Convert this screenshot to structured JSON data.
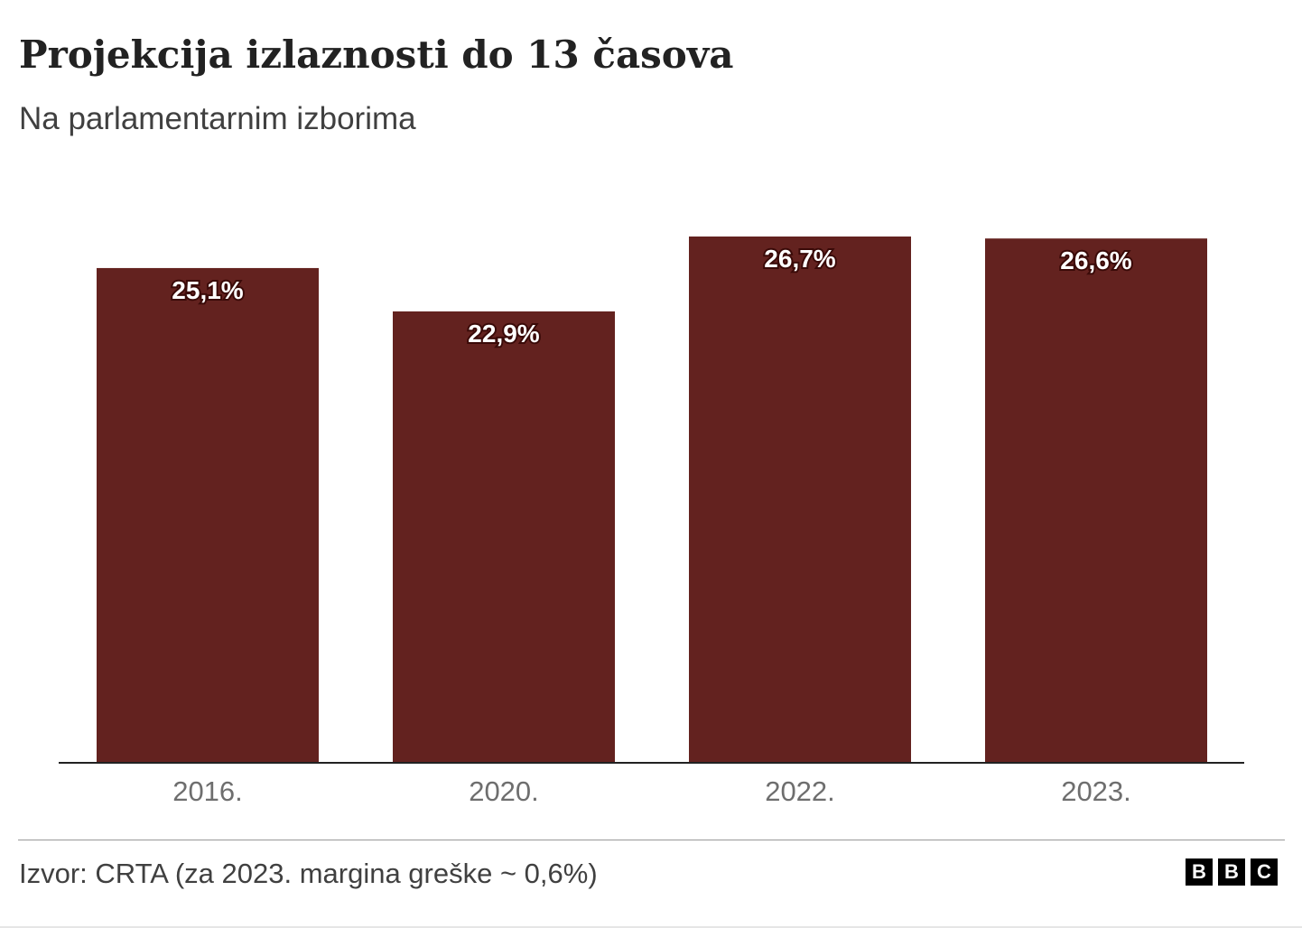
{
  "header": {
    "title": "Projekcija izlaznosti do 13 časova",
    "subtitle": "Na parlamentarnim izborima"
  },
  "footer": {
    "source": "Izvor: CRTA (za 2023. margina greške ~ 0,6%)",
    "logo": [
      "B",
      "B",
      "C"
    ]
  },
  "chart_data": {
    "type": "bar",
    "title": "Projekcija izlaznosti do 13 časova",
    "subtitle": "Na parlamentarnim izborima",
    "categories": [
      "2016.",
      "2020.",
      "2022.",
      "2023."
    ],
    "values": [
      25.1,
      22.9,
      26.7,
      26.6
    ],
    "data_labels": [
      "25,1%",
      "22,9%",
      "26,7%",
      "26,6%"
    ],
    "ylim": [
      0,
      26.7
    ],
    "grid": false,
    "bar_color": "#63221f"
  }
}
